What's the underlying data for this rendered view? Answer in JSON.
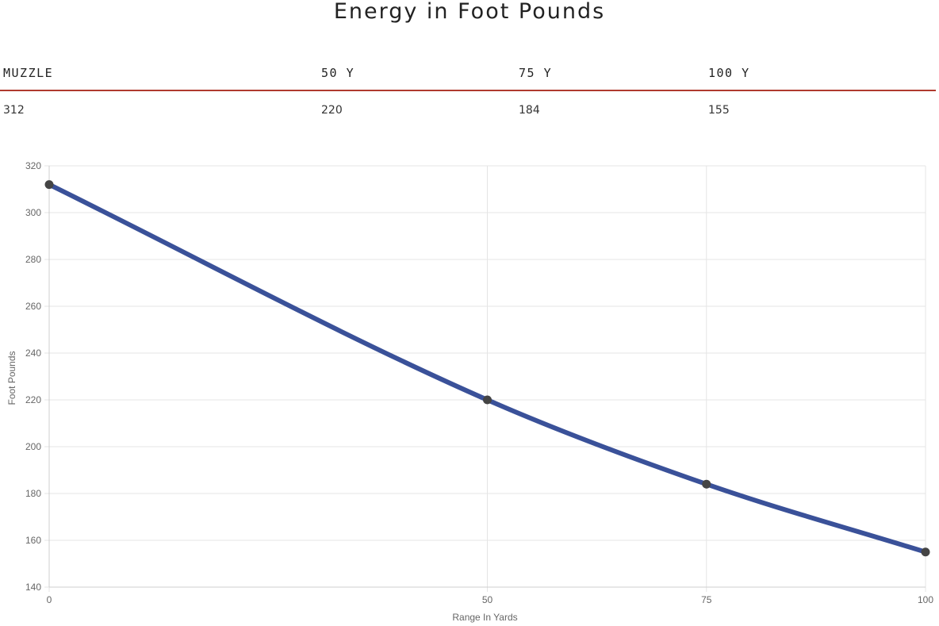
{
  "title": "Energy in Foot Pounds",
  "table": {
    "headers": [
      "MUZZLE",
      "50 Y",
      "75 Y",
      "100 Y"
    ],
    "values": [
      "312",
      "220",
      "184",
      "155"
    ]
  },
  "colors": {
    "line": "#3a5199",
    "point": "#444444",
    "accent": "#b03a2e",
    "grid": "#e5e5e5"
  },
  "chart_data": {
    "type": "line",
    "x": [
      0,
      50,
      75,
      100
    ],
    "x_tick_labels": [
      "0",
      "50",
      "75",
      "100"
    ],
    "series": [
      {
        "values": [
          312,
          220,
          184,
          155
        ]
      }
    ],
    "xlabel": "Range In Yards",
    "ylabel": "Foot Pounds",
    "ylim": [
      140,
      320
    ],
    "y_ticks": [
      140,
      160,
      180,
      200,
      220,
      240,
      260,
      280,
      300,
      320
    ],
    "grid": true,
    "legend": "none"
  }
}
